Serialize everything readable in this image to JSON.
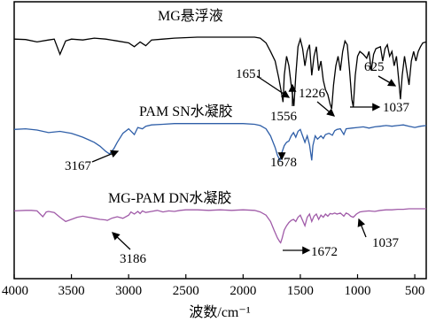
{
  "chart_data": {
    "type": "line",
    "title": "",
    "xlabel": "波数/cm⁻¹",
    "ylabel": "",
    "xlim": [
      4000,
      400
    ],
    "x_reversed": true,
    "x_ticks": [
      4000,
      3500,
      3000,
      2500,
      2000,
      1500,
      1000,
      500
    ],
    "x_tick_labels": [
      "4000",
      "3500",
      "3000",
      "2500",
      "2000",
      "1500",
      "1000",
      "500"
    ],
    "y_ticks_shown": false,
    "grid": false,
    "legend": "none",
    "series": [
      {
        "name": "MG悬浮液",
        "color": "#000000",
        "offset": 0,
        "points": [
          [
            4000,
            0.2
          ],
          [
            3900,
            0.25
          ],
          [
            3800,
            0.5
          ],
          [
            3700,
            0.3
          ],
          [
            3650,
            0.2
          ],
          [
            3600,
            1.8
          ],
          [
            3550,
            0.4
          ],
          [
            3500,
            0.2
          ],
          [
            3400,
            0.3
          ],
          [
            3300,
            0.1
          ],
          [
            3200,
            0.2
          ],
          [
            3100,
            0.4
          ],
          [
            3000,
            0.6
          ],
          [
            2950,
            1.0
          ],
          [
            2900,
            0.5
          ],
          [
            2850,
            0.9
          ],
          [
            2800,
            0.3
          ],
          [
            2700,
            0.2
          ],
          [
            2600,
            0.1
          ],
          [
            2400,
            0.0
          ],
          [
            2200,
            0.0
          ],
          [
            2000,
            0.0
          ],
          [
            1900,
            0.0
          ],
          [
            1850,
            0.1
          ],
          [
            1800,
            0.6
          ],
          [
            1760,
            1.5
          ],
          [
            1720,
            2.5
          ],
          [
            1690,
            4.2
          ],
          [
            1670,
            5.5
          ],
          [
            1651,
            6.8
          ],
          [
            1640,
            4.0
          ],
          [
            1620,
            2.0
          ],
          [
            1600,
            3.0
          ],
          [
            1580,
            5.0
          ],
          [
            1556,
            7.2
          ],
          [
            1540,
            4.0
          ],
          [
            1520,
            1.0
          ],
          [
            1500,
            0.2
          ],
          [
            1480,
            1.2
          ],
          [
            1460,
            3.0
          ],
          [
            1440,
            1.5
          ],
          [
            1420,
            0.8
          ],
          [
            1400,
            4.0
          ],
          [
            1380,
            2.0
          ],
          [
            1360,
            1.0
          ],
          [
            1340,
            3.5
          ],
          [
            1320,
            2.5
          ],
          [
            1300,
            4.5
          ],
          [
            1280,
            5.5
          ],
          [
            1260,
            6.0
          ],
          [
            1240,
            7.0
          ],
          [
            1226,
            7.5
          ],
          [
            1210,
            5.0
          ],
          [
            1190,
            3.0
          ],
          [
            1170,
            2.0
          ],
          [
            1150,
            3.5
          ],
          [
            1130,
            1.5
          ],
          [
            1110,
            0.4
          ],
          [
            1090,
            0.8
          ],
          [
            1070,
            3.5
          ],
          [
            1050,
            6.5
          ],
          [
            1037,
            7.3
          ],
          [
            1020,
            4.0
          ],
          [
            1000,
            2.0
          ],
          [
            980,
            1.5
          ],
          [
            950,
            1.8
          ],
          [
            920,
            2.2
          ],
          [
            900,
            1.5
          ],
          [
            880,
            3.5
          ],
          [
            860,
            1.8
          ],
          [
            840,
            1.2
          ],
          [
            800,
            1.0
          ],
          [
            780,
            2.5
          ],
          [
            760,
            1.2
          ],
          [
            740,
            0.8
          ],
          [
            720,
            2.0
          ],
          [
            700,
            1.5
          ],
          [
            680,
            3.0
          ],
          [
            660,
            2.0
          ],
          [
            640,
            4.5
          ],
          [
            625,
            6.5
          ],
          [
            610,
            4.0
          ],
          [
            590,
            2.0
          ],
          [
            570,
            3.5
          ],
          [
            550,
            5.0
          ],
          [
            530,
            2.5
          ],
          [
            510,
            1.5
          ],
          [
            490,
            2.5
          ],
          [
            470,
            1.5
          ],
          [
            450,
            1.0
          ],
          [
            430,
            0.6
          ],
          [
            400,
            0.5
          ]
        ]
      },
      {
        "name": "PAM SN水凝胶",
        "color": "#2f5fa8",
        "offset": 0,
        "points": [
          [
            4000,
            1.0
          ],
          [
            3900,
            0.9
          ],
          [
            3800,
            1.1
          ],
          [
            3700,
            1.5
          ],
          [
            3600,
            1.3
          ],
          [
            3500,
            1.6
          ],
          [
            3450,
            1.9
          ],
          [
            3400,
            2.2
          ],
          [
            3350,
            2.6
          ],
          [
            3300,
            3.0
          ],
          [
            3250,
            3.6
          ],
          [
            3200,
            4.4
          ],
          [
            3167,
            4.8
          ],
          [
            3130,
            4.0
          ],
          [
            3100,
            3.0
          ],
          [
            3050,
            1.6
          ],
          [
            3000,
            0.9
          ],
          [
            2950,
            1.8
          ],
          [
            2920,
            0.7
          ],
          [
            2880,
            0.9
          ],
          [
            2850,
            0.5
          ],
          [
            2800,
            0.3
          ],
          [
            2700,
            0.2
          ],
          [
            2600,
            0.1
          ],
          [
            2400,
            0.1
          ],
          [
            2200,
            0.1
          ],
          [
            2000,
            0.1
          ],
          [
            1900,
            0.2
          ],
          [
            1850,
            0.4
          ],
          [
            1800,
            0.9
          ],
          [
            1760,
            2.0
          ],
          [
            1720,
            3.8
          ],
          [
            1700,
            5.0
          ],
          [
            1678,
            5.8
          ],
          [
            1660,
            4.5
          ],
          [
            1640,
            3.5
          ],
          [
            1620,
            3.0
          ],
          [
            1600,
            2.8
          ],
          [
            1580,
            2.0
          ],
          [
            1560,
            1.5
          ],
          [
            1540,
            2.2
          ],
          [
            1520,
            1.3
          ],
          [
            1500,
            1.0
          ],
          [
            1480,
            2.0
          ],
          [
            1460,
            3.0
          ],
          [
            1440,
            2.0
          ],
          [
            1420,
            3.4
          ],
          [
            1400,
            5.8
          ],
          [
            1390,
            3.5
          ],
          [
            1370,
            2.0
          ],
          [
            1350,
            2.5
          ],
          [
            1320,
            2.0
          ],
          [
            1300,
            2.4
          ],
          [
            1280,
            1.8
          ],
          [
            1250,
            1.6
          ],
          [
            1220,
            1.9
          ],
          [
            1200,
            1.2
          ],
          [
            1180,
            1.0
          ],
          [
            1150,
            0.9
          ],
          [
            1120,
            1.8
          ],
          [
            1100,
            0.9
          ],
          [
            1050,
            0.8
          ],
          [
            1000,
            0.7
          ],
          [
            950,
            0.6
          ],
          [
            900,
            0.8
          ],
          [
            850,
            0.6
          ],
          [
            800,
            0.5
          ],
          [
            750,
            0.4
          ],
          [
            700,
            0.5
          ],
          [
            650,
            0.4
          ],
          [
            600,
            0.3
          ],
          [
            550,
            0.5
          ],
          [
            500,
            0.7
          ],
          [
            450,
            0.5
          ],
          [
            400,
            0.4
          ]
        ]
      },
      {
        "name": "MG-PAM DN水凝胶",
        "color": "#a05ba8",
        "offset": 0,
        "points": [
          [
            4000,
            0.4
          ],
          [
            3900,
            0.3
          ],
          [
            3850,
            0.3
          ],
          [
            3800,
            0.4
          ],
          [
            3750,
            1.5
          ],
          [
            3720,
            0.6
          ],
          [
            3700,
            0.5
          ],
          [
            3650,
            0.7
          ],
          [
            3600,
            1.6
          ],
          [
            3550,
            2.4
          ],
          [
            3500,
            2.0
          ],
          [
            3450,
            1.6
          ],
          [
            3400,
            1.4
          ],
          [
            3350,
            1.6
          ],
          [
            3300,
            1.8
          ],
          [
            3250,
            2.0
          ],
          [
            3200,
            2.1
          ],
          [
            3186,
            2.2
          ],
          [
            3150,
            1.8
          ],
          [
            3100,
            1.5
          ],
          [
            3050,
            1.8
          ],
          [
            3000,
            1.2
          ],
          [
            2980,
            0.6
          ],
          [
            2950,
            1.0
          ],
          [
            2920,
            0.5
          ],
          [
            2900,
            0.9
          ],
          [
            2880,
            0.4
          ],
          [
            2850,
            0.7
          ],
          [
            2800,
            0.5
          ],
          [
            2750,
            0.3
          ],
          [
            2700,
            0.6
          ],
          [
            2650,
            0.4
          ],
          [
            2600,
            0.5
          ],
          [
            2550,
            0.3
          ],
          [
            2500,
            0.2
          ],
          [
            2400,
            0.2
          ],
          [
            2300,
            0.3
          ],
          [
            2200,
            0.2
          ],
          [
            2100,
            0.3
          ],
          [
            2000,
            0.2
          ],
          [
            1900,
            0.3
          ],
          [
            1850,
            0.6
          ],
          [
            1800,
            1.2
          ],
          [
            1760,
            2.4
          ],
          [
            1730,
            4.0
          ],
          [
            1700,
            5.5
          ],
          [
            1680,
            6.2
          ],
          [
            1672,
            6.4
          ],
          [
            1660,
            5.6
          ],
          [
            1640,
            4.0
          ],
          [
            1620,
            3.2
          ],
          [
            1600,
            2.6
          ],
          [
            1580,
            2.2
          ],
          [
            1560,
            2.0
          ],
          [
            1540,
            2.4
          ],
          [
            1520,
            1.6
          ],
          [
            1500,
            1.2
          ],
          [
            1480,
            2.2
          ],
          [
            1460,
            3.2
          ],
          [
            1440,
            1.6
          ],
          [
            1420,
            1.0
          ],
          [
            1400,
            2.4
          ],
          [
            1380,
            1.4
          ],
          [
            1360,
            1.0
          ],
          [
            1340,
            2.0
          ],
          [
            1320,
            1.2
          ],
          [
            1300,
            1.6
          ],
          [
            1280,
            1.0
          ],
          [
            1260,
            1.4
          ],
          [
            1240,
            0.9
          ],
          [
            1220,
            1.0
          ],
          [
            1200,
            0.8
          ],
          [
            1180,
            1.0
          ],
          [
            1150,
            0.8
          ],
          [
            1120,
            1.4
          ],
          [
            1100,
            0.8
          ],
          [
            1080,
            1.0
          ],
          [
            1060,
            1.4
          ],
          [
            1037,
            1.6
          ],
          [
            1010,
            1.0
          ],
          [
            980,
            0.6
          ],
          [
            950,
            0.5
          ],
          [
            900,
            0.4
          ],
          [
            850,
            0.5
          ],
          [
            800,
            0.3
          ],
          [
            750,
            0.2
          ],
          [
            700,
            0.2
          ],
          [
            650,
            0.1
          ],
          [
            600,
            0.1
          ],
          [
            550,
            0.0
          ],
          [
            500,
            0.0
          ],
          [
            450,
            0.0
          ],
          [
            400,
            0.0
          ]
        ]
      }
    ],
    "annotations": [
      {
        "text": "1651",
        "series": 0,
        "x": 1651,
        "arrow_dir": "down-right"
      },
      {
        "text": "1556",
        "series": 0,
        "x": 1556,
        "arrow_dir": "up"
      },
      {
        "text": "1226",
        "series": 0,
        "x": 1226,
        "arrow_dir": "down-right"
      },
      {
        "text": "1037",
        "series": 0,
        "x": 1037,
        "arrow_dir": "right"
      },
      {
        "text": "625",
        "series": 0,
        "x": 625,
        "arrow_dir": "down-right"
      },
      {
        "text": "3167",
        "series": 1,
        "x": 3167,
        "arrow_dir": "up-right"
      },
      {
        "text": "1678",
        "series": 1,
        "x": 1678,
        "arrow_dir": "up"
      },
      {
        "text": "3186",
        "series": 2,
        "x": 3186,
        "arrow_dir": "up-left"
      },
      {
        "text": "1672",
        "series": 2,
        "x": 1672,
        "arrow_dir": "right"
      },
      {
        "text": "1037",
        "series": 2,
        "x": 1037,
        "arrow_dir": "up"
      }
    ]
  }
}
